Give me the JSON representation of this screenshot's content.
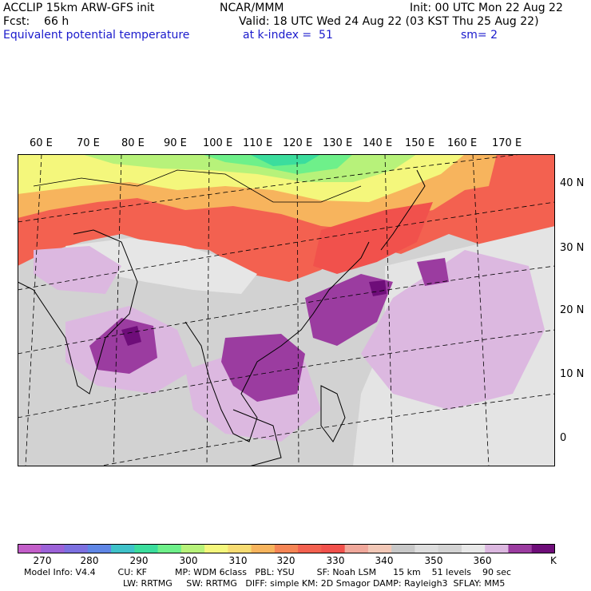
{
  "header": {
    "left": [
      "ACCLIP 15km ARW-GFS init",
      "Fcst:    66 h",
      "Equivalent potential temperature"
    ],
    "center": [
      "NCAR/MMM",
      "Valid: 18 UTC Wed 24 Aug 22 (03 KST Thu 25 Aug 22)",
      "at k-index =  51"
    ],
    "right": [
      "Init: 00 UTC Mon 22 Aug 22",
      "sm= 2"
    ]
  },
  "map": {
    "lon_labels": [
      "60 E",
      "70 E",
      "80 E",
      "90 E",
      "100 E",
      "110 E",
      "120 E",
      "130 E",
      "140 E",
      "150 E",
      "160 E",
      "170 E"
    ],
    "lat_labels": [
      "40 N",
      "30 N",
      "20 N",
      "10 N",
      "0"
    ]
  },
  "colorbar": {
    "colors": [
      "#c35ec9",
      "#9c62d8",
      "#7c70e0",
      "#5f86e5",
      "#3fc2c9",
      "#3bdd9d",
      "#6ef08a",
      "#b7f27a",
      "#f4f77c",
      "#f7dc72",
      "#f7b45d",
      "#f58555",
      "#f36150",
      "#f1514c",
      "#f0a89b",
      "#f2c8b7",
      "#c8c8c8",
      "#dedede",
      "#d3d3d3",
      "#e8e8e8",
      "#dcb8e0",
      "#9b3ca0",
      "#6e0d79"
    ],
    "ticks": [
      "270",
      "280",
      "290",
      "300",
      "310",
      "320",
      "330",
      "340",
      "350",
      "360"
    ],
    "unit": "K"
  },
  "footer": {
    "line1": "Model Info: V4.4        CU: KF          MP: WDM 6class   PBL: YSU        SF: Noah LSM      15 km    51 levels    90 sec",
    "line2": "LW: RRTMG     SW: RRTMG   DIFF: simple KM: 2D Smagor DAMP: Rayleigh3  SFLAY: MM5"
  }
}
